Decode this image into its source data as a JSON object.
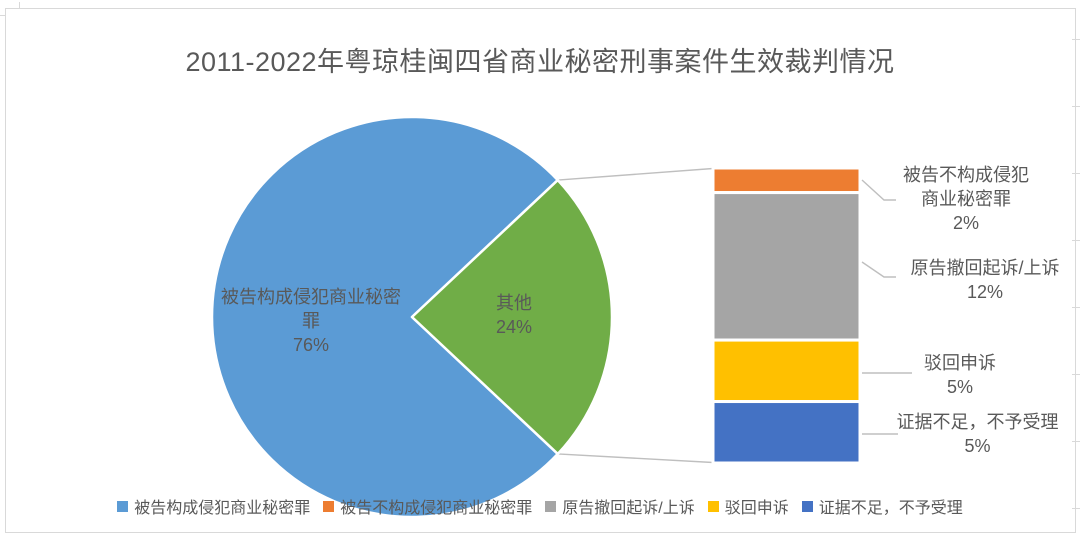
{
  "frame_color": "#d9d9d9",
  "text_color": "#595959",
  "line_color": "#bfbfbf",
  "chart_data": {
    "type": "pie",
    "subtype": "bar-of-pie",
    "title": "2011-2022年粤琼桂闽四省商业秘密刑事案件生效裁判情况",
    "unit": "percent",
    "legend_position": "bottom",
    "main_pie": {
      "slices": [
        {
          "label": "被告构成侵犯商业秘密罪",
          "value": 76,
          "value_label": "76%",
          "color": "#5b9bd5",
          "label_lines": [
            "被告构成侵犯商业秘密",
            "罪"
          ]
        },
        {
          "label": "其他",
          "value": 24,
          "value_label": "24%",
          "color": "#70ad47",
          "label_lines": [
            "其他"
          ]
        }
      ]
    },
    "bar_of_pie": {
      "represents": "其他",
      "total": 24,
      "segments": [
        {
          "label": "被告不构成侵犯商业秘密罪",
          "value": 2,
          "value_label": "2%",
          "color": "#ed7d31",
          "label_lines": [
            "被告不构成侵犯",
            "商业秘密罪"
          ]
        },
        {
          "label": "原告撤回起诉/上诉",
          "value": 12,
          "value_label": "12%",
          "color": "#a5a5a5",
          "label_lines": [
            "原告撤回起诉/上诉"
          ]
        },
        {
          "label": "驳回申诉",
          "value": 5,
          "value_label": "5%",
          "color": "#ffc000",
          "label_lines": [
            "驳回申诉"
          ]
        },
        {
          "label": "证据不足，不予受理",
          "value": 5,
          "value_label": "5%",
          "color": "#4472c4",
          "label_lines": [
            "证据不足，不予受理"
          ]
        }
      ]
    },
    "legend": [
      {
        "label": "被告构成侵犯商业秘密罪",
        "color": "#5b9bd5"
      },
      {
        "label": "被告不构成侵犯商业秘密罪",
        "color": "#ed7d31"
      },
      {
        "label": "原告撤回起诉/上诉",
        "color": "#a5a5a5"
      },
      {
        "label": "驳回申诉",
        "color": "#ffc000"
      },
      {
        "label": "证据不足，不予受理",
        "color": "#4472c4"
      }
    ]
  }
}
